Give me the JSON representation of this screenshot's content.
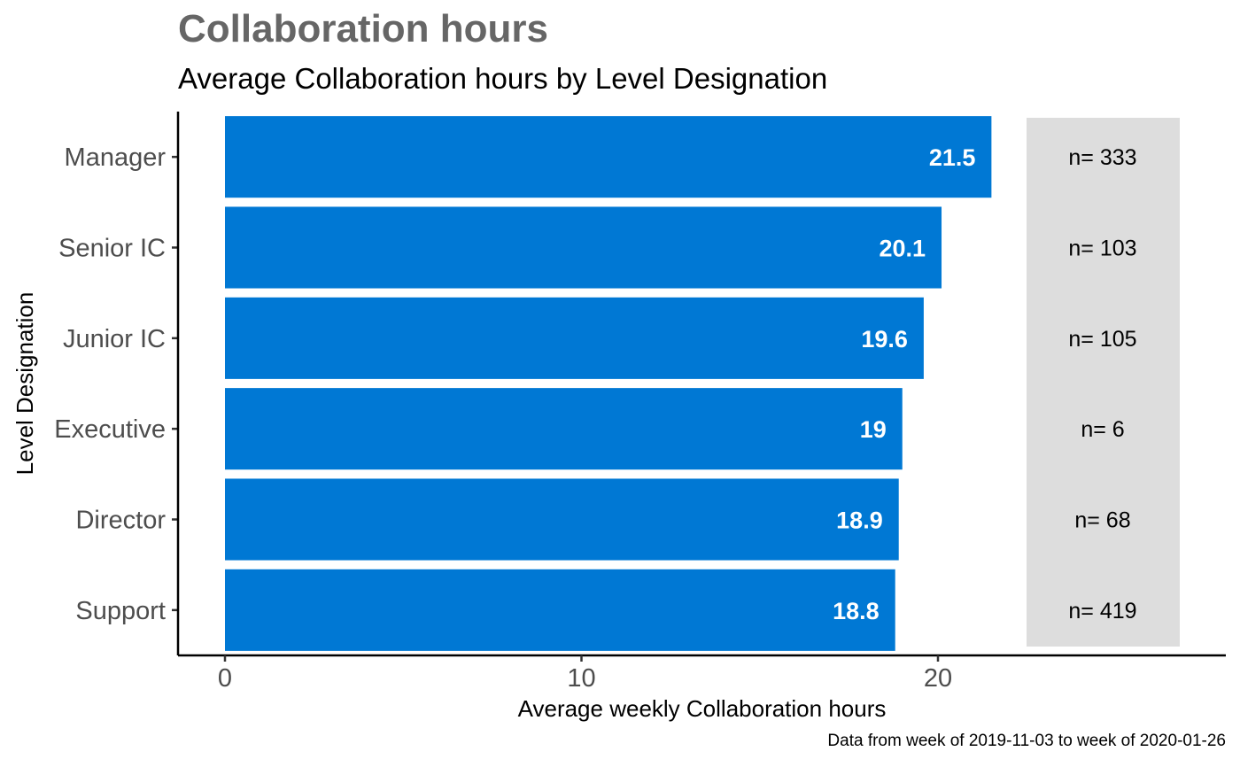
{
  "chart_data": {
    "type": "bar",
    "orientation": "horizontal",
    "title": "Collaboration hours",
    "subtitle": "Average Collaboration hours by Level Designation",
    "xlabel": "Average weekly Collaboration hours",
    "ylabel": "Level Designation",
    "caption": "Data from week of 2019-11-03 to week of 2020-01-26",
    "categories": [
      "Manager",
      "Senior IC",
      "Junior IC",
      "Executive",
      "Director",
      "Support"
    ],
    "values": [
      21.5,
      20.1,
      19.6,
      19,
      18.9,
      18.8
    ],
    "value_labels": [
      "21.5",
      "20.1",
      "19.6",
      "19",
      "18.9",
      "18.8"
    ],
    "n_labels": [
      "n= 333",
      "n= 103",
      "n= 105",
      "n= 6",
      "n= 68",
      "n= 419"
    ],
    "x_ticks": [
      0,
      10,
      20
    ],
    "xlim": [
      -1.35,
      28.2
    ],
    "grid": false,
    "legend": "none",
    "colors": {
      "bar": "#0078D4",
      "n_panel": "#DDDDDD",
      "title": "#666666",
      "tick_label": "#4D4D4D",
      "value_label": "#FFFFFF"
    }
  }
}
